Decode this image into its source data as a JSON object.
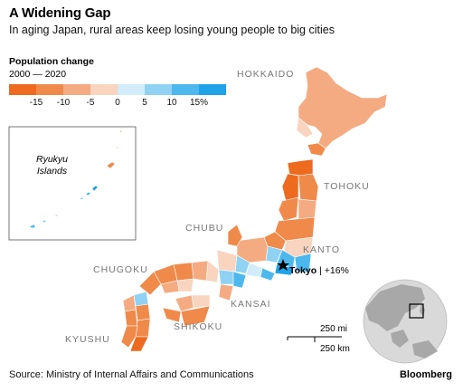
{
  "header": {
    "title": "A Widening Gap",
    "subtitle": "In aging Japan, rural areas keep losing young people to big cities"
  },
  "legend": {
    "title": "Population change",
    "period": "2000 — 2020",
    "ticks": [
      "-15",
      "-10",
      "-5",
      "0",
      "5",
      "10",
      "15%"
    ],
    "swatches": [
      "#ee6a1f",
      "#f08a4b",
      "#f4ab82",
      "#f9d4bf",
      "#d2ecf9",
      "#8fd2f3",
      "#4cb8ee",
      "#1fa3e8"
    ]
  },
  "regions": {
    "hokkaido": "HOKKAIDO",
    "tohoku": "TOHOKU",
    "chubu": "CHUBU",
    "kanto": "KANTO",
    "chugoku": "CHUGOKU",
    "kansai": "KANSAI",
    "shikoku": "SHIKOKU",
    "kyushu": "KYUSHU"
  },
  "callout": {
    "city": "Tokyo",
    "change": "| +16%"
  },
  "inset": {
    "label_line1": "Ryukyu",
    "label_line2": "Islands"
  },
  "scale": {
    "miles": "250 mi",
    "km": "250 km"
  },
  "footer": {
    "source": "Source: Ministry of Internal Affairs and Communications",
    "brand": "Bloomberg"
  }
}
